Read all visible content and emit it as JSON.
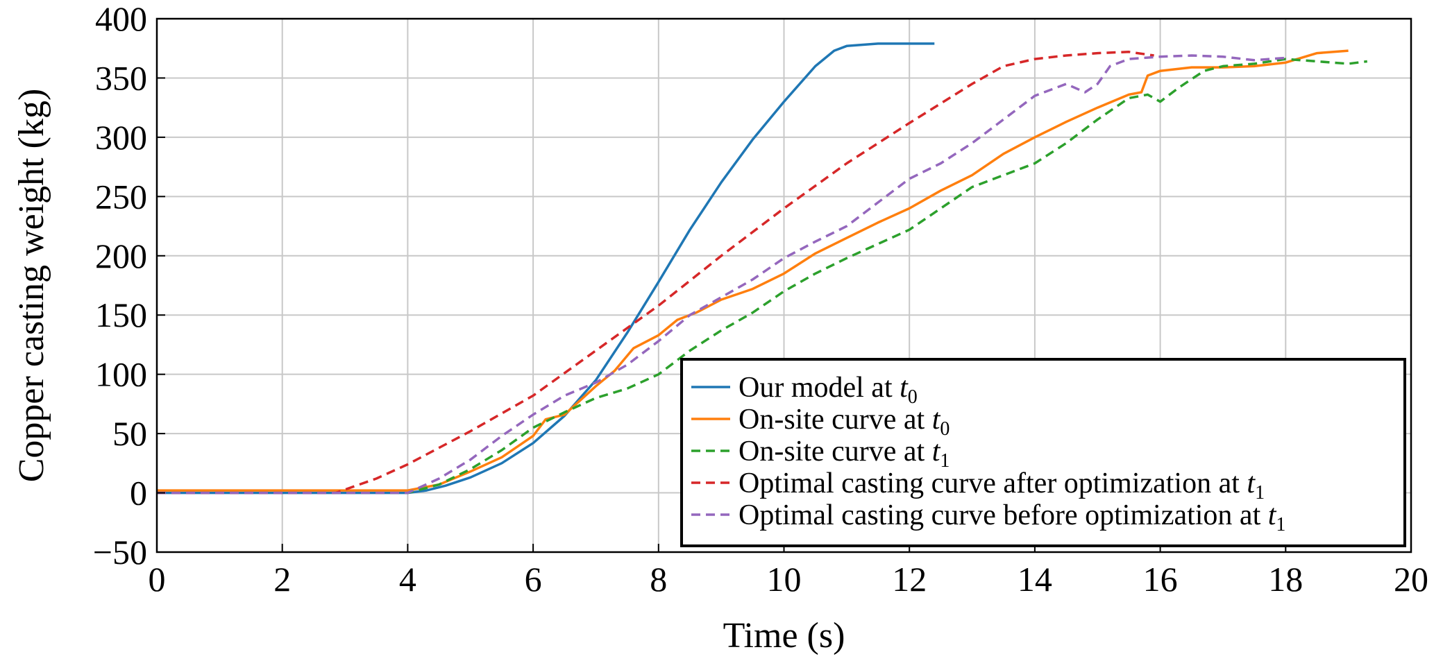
{
  "chart_data": {
    "type": "line",
    "title": "",
    "xlabel": "Time (s)",
    "ylabel": "Copper casting weight (kg)",
    "xlim": [
      0,
      20
    ],
    "ylim": [
      -50,
      400
    ],
    "xticks": [
      0,
      2,
      4,
      6,
      8,
      10,
      12,
      14,
      16,
      18,
      20
    ],
    "xtick_labels": [
      "0",
      "2",
      "4",
      "6",
      "8",
      "10",
      "12",
      "14",
      "16",
      "18",
      "20"
    ],
    "yticks": [
      -50,
      0,
      50,
      100,
      150,
      200,
      250,
      300,
      350,
      400
    ],
    "ytick_labels": [
      "−50",
      "0",
      "50",
      "100",
      "150",
      "200",
      "250",
      "300",
      "350",
      "400"
    ],
    "grid": true,
    "legend_position": "bottom-right",
    "series": [
      {
        "name": "Our model at t0",
        "legend_text": "Our model at ",
        "legend_var": "t",
        "legend_sub": "0",
        "color": "#1f77b4",
        "style": "solid",
        "x": [
          0,
          4.0,
          4.3,
          4.6,
          5.0,
          5.5,
          6.0,
          6.5,
          7.0,
          7.5,
          8.0,
          8.5,
          9.0,
          9.5,
          10.0,
          10.5,
          10.8,
          11.0,
          11.5,
          12.0,
          12.4
        ],
        "y": [
          0,
          0,
          2,
          6,
          13,
          25,
          42,
          65,
          95,
          135,
          178,
          222,
          262,
          298,
          330,
          360,
          373,
          377,
          379,
          379,
          379
        ]
      },
      {
        "name": "On-site curve at t0",
        "legend_text": "On-site curve at ",
        "legend_var": "t",
        "legend_sub": "0",
        "color": "#ff7f0e",
        "style": "solid",
        "x": [
          0,
          4.0,
          4.5,
          5.0,
          5.5,
          6.0,
          6.2,
          6.5,
          7.0,
          7.3,
          7.6,
          8.0,
          8.3,
          8.6,
          9.0,
          9.5,
          10.0,
          10.5,
          11.0,
          11.5,
          12.0,
          12.5,
          13.0,
          13.5,
          14.0,
          14.5,
          15.0,
          15.5,
          15.7,
          15.8,
          16.0,
          16.5,
          17.0,
          17.5,
          18.0,
          18.5,
          19.0
        ],
        "y": [
          2,
          2,
          7,
          18,
          30,
          48,
          62,
          66,
          90,
          103,
          122,
          133,
          146,
          152,
          163,
          172,
          185,
          202,
          215,
          228,
          240,
          255,
          268,
          286,
          300,
          313,
          325,
          336,
          338,
          352,
          356,
          359,
          359,
          360,
          363,
          371,
          373
        ]
      },
      {
        "name": "On-site curve at t1",
        "legend_text": "On-site curve at ",
        "legend_var": "t",
        "legend_sub": "1",
        "color": "#2ca02c",
        "style": "dashed",
        "x": [
          0,
          4.0,
          4.5,
          5.0,
          5.5,
          6.0,
          6.5,
          7.0,
          7.5,
          8.0,
          8.5,
          9.0,
          9.5,
          10.0,
          10.5,
          11.0,
          11.5,
          12.0,
          12.5,
          13.0,
          13.5,
          14.0,
          14.5,
          15.0,
          15.5,
          15.8,
          16.0,
          16.3,
          16.7,
          17.0,
          17.5,
          18.0,
          18.5,
          19.0,
          19.3
        ],
        "y": [
          0,
          0,
          7,
          20,
          36,
          55,
          68,
          80,
          88,
          100,
          120,
          137,
          152,
          170,
          185,
          198,
          210,
          222,
          240,
          258,
          268,
          278,
          295,
          315,
          333,
          336,
          330,
          342,
          356,
          360,
          362,
          366,
          364,
          362,
          364
        ]
      },
      {
        "name": "Optimal casting curve after optimization at t1",
        "legend_text": "Optimal casting curve after optimization at ",
        "legend_var": "t",
        "legend_sub": "1",
        "color": "#d62728",
        "style": "dashed",
        "x": [
          0,
          2.85,
          3.5,
          4.0,
          5.0,
          6.0,
          7.0,
          8.0,
          9.0,
          10.0,
          11.0,
          12.0,
          13.0,
          13.5,
          14.0,
          14.5,
          15.0,
          15.5,
          15.9
        ],
        "y": [
          0,
          0,
          12,
          24,
          52,
          82,
          120,
          158,
          200,
          240,
          278,
          312,
          345,
          360,
          366,
          369,
          371,
          372,
          369
        ]
      },
      {
        "name": "Optimal casting curve before optimization at t1",
        "legend_text": "Optimal casting curve before optimization at ",
        "legend_var": "t",
        "legend_sub": "1",
        "color": "#9467bd",
        "style": "dashed",
        "x": [
          0,
          4.0,
          4.5,
          5.0,
          5.5,
          6.0,
          6.5,
          7.0,
          7.5,
          8.0,
          8.5,
          9.0,
          9.5,
          10.0,
          10.5,
          11.0,
          11.5,
          12.0,
          12.5,
          13.0,
          13.5,
          14.0,
          14.5,
          14.8,
          15.0,
          15.2,
          15.5,
          16.0,
          16.5,
          17.0,
          17.5,
          18.0
        ],
        "y": [
          0,
          0,
          12,
          28,
          48,
          66,
          82,
          93,
          108,
          128,
          150,
          165,
          180,
          198,
          212,
          225,
          245,
          265,
          278,
          295,
          315,
          335,
          345,
          338,
          345,
          360,
          366,
          368,
          369,
          368,
          365,
          367
        ]
      }
    ]
  }
}
